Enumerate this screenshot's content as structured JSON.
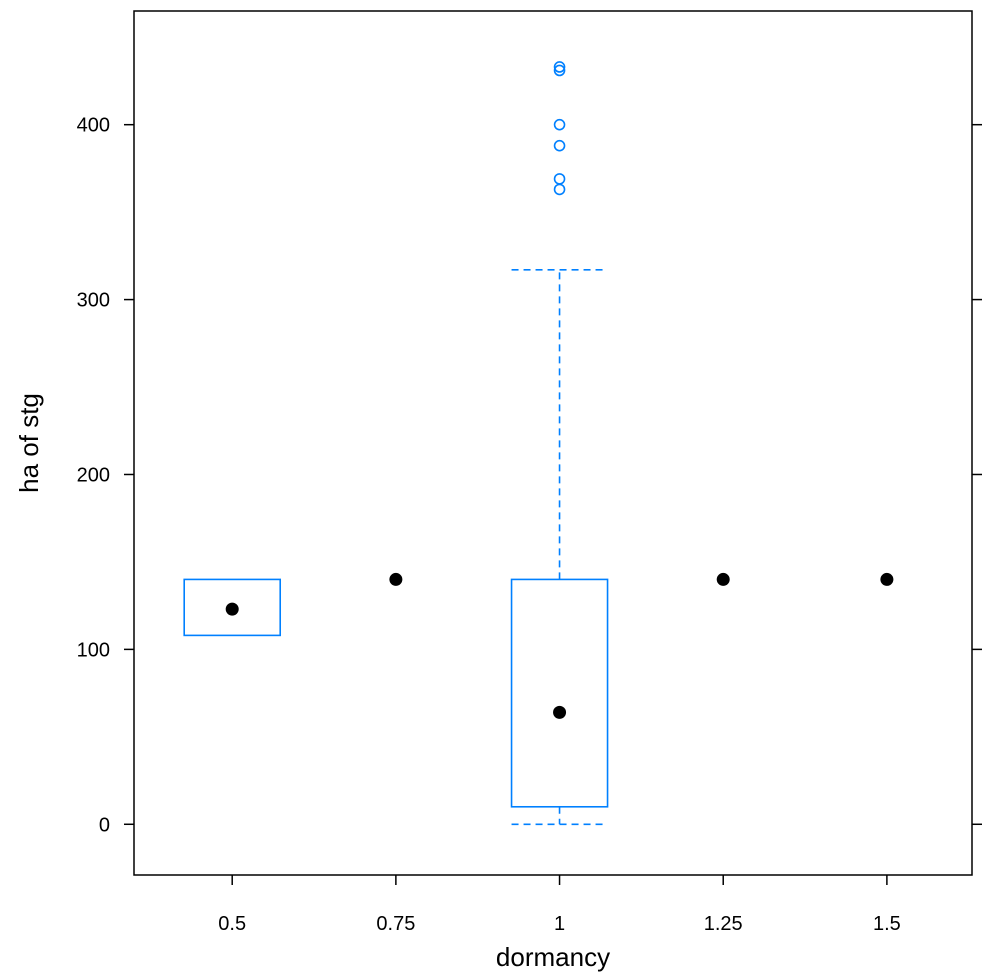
{
  "chart_data": {
    "type": "box",
    "xlabel": "dormancy",
    "ylabel": "ha of stg",
    "categories": [
      "0.5",
      "0.75",
      "1",
      "1.25",
      "1.5"
    ],
    "ylim": [
      -29,
      465
    ],
    "yticks": [
      0,
      100,
      200,
      300,
      400
    ],
    "ytick_labels": [
      "0",
      "100",
      "200",
      "300",
      "400"
    ],
    "grid": false,
    "legend": "none",
    "colors": {
      "box": "#0080ff",
      "median": "#000000",
      "frame": "#000000"
    },
    "boxes": [
      {
        "category": "0.5",
        "whisker_low": 108,
        "q1": 108,
        "median": 123,
        "q3": 140,
        "whisker_high": 140,
        "outliers": []
      },
      {
        "category": "0.75",
        "whisker_low": 140,
        "q1": 140,
        "median": 140,
        "q3": 140,
        "whisker_high": 140,
        "outliers": []
      },
      {
        "category": "1",
        "whisker_low": 0,
        "q1": 10,
        "median": 64,
        "q3": 140,
        "whisker_high": 317,
        "outliers": [
          363,
          369,
          388,
          400,
          431,
          433
        ]
      },
      {
        "category": "1.25",
        "whisker_low": 140,
        "q1": 140,
        "median": 140,
        "q3": 140,
        "whisker_high": 140,
        "outliers": []
      },
      {
        "category": "1.5",
        "whisker_low": 140,
        "q1": 140,
        "median": 140,
        "q3": 140,
        "whisker_high": 140,
        "outliers": []
      }
    ]
  }
}
